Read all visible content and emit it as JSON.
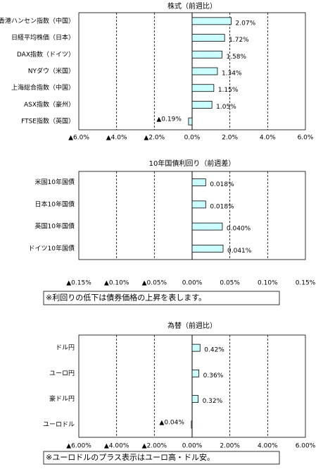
{
  "chart_data": [
    {
      "type": "bar",
      "title": "株式（前週比）",
      "categories": [
        "香港ハンセン指数（中国）",
        "日経平均株価（日本）",
        "DAX指数（ドイツ）",
        "NYダウ（米国）",
        "上海総合指数（中国）",
        "ASX指数（豪州）",
        "FTSE指数（英国）"
      ],
      "values": [
        2.07,
        1.72,
        1.58,
        1.34,
        1.15,
        1.05,
        -0.19
      ],
      "value_labels": [
        "2.07%",
        "1.72%",
        "1.58%",
        "1.34%",
        "1.15%",
        "1.05%",
        "▲0.19%"
      ],
      "color": "#ccffff",
      "negative_label_color": "#ff0000",
      "xlim": [
        -6,
        6
      ],
      "xticks": [
        {
          "value": -6,
          "label": "▲6.0%"
        },
        {
          "value": -4,
          "label": "▲4.0%"
        },
        {
          "value": -2,
          "label": "▲2.0%"
        },
        {
          "value": 0,
          "label": "0.0%"
        },
        {
          "value": 2,
          "label": "2.0%"
        },
        {
          "value": 4,
          "label": "4.0%"
        },
        {
          "value": 6,
          "label": "6.0%"
        }
      ],
      "grid": true
    },
    {
      "type": "bar",
      "title": "10年国債利回り（前週差）",
      "categories": [
        "米国10年国債",
        "日本10年国債",
        "英国10年国債",
        "ドイツ10年国債"
      ],
      "values": [
        0.018,
        0.018,
        0.04,
        0.041
      ],
      "value_labels": [
        "0.018%",
        "0.018%",
        "0.040%",
        "0.041%"
      ],
      "color": "#ccffff",
      "negative_label_color": "#ff0000",
      "xlim": [
        -0.15,
        0.15
      ],
      "xticks": [
        {
          "value": -0.15,
          "label": "▲0.15%"
        },
        {
          "value": -0.1,
          "label": "▲0.10%"
        },
        {
          "value": -0.05,
          "label": "▲0.05%"
        },
        {
          "value": 0,
          "label": "0.00%"
        },
        {
          "value": 0.05,
          "label": "0.05%"
        },
        {
          "value": 0.1,
          "label": "0.10%"
        },
        {
          "value": 0.15,
          "label": "0.15%"
        }
      ],
      "grid": true,
      "note": "※利回りの低下は債券価格の上昇を表します。"
    },
    {
      "type": "bar",
      "title": "為替（前週比）",
      "categories": [
        "ドル円",
        "ユーロ円",
        "豪ドル円",
        "ユーロドル"
      ],
      "values": [
        0.42,
        0.36,
        0.32,
        -0.04
      ],
      "value_labels": [
        "0.42%",
        "0.36%",
        "0.32%",
        "▲0.04%"
      ],
      "color": "#ccffff",
      "negative_label_color": "#ff0000",
      "xlim": [
        -6,
        6
      ],
      "xticks": [
        {
          "value": -6,
          "label": "▲6.00%"
        },
        {
          "value": -4,
          "label": "▲4.00%"
        },
        {
          "value": -2,
          "label": "▲2.00%"
        },
        {
          "value": 0,
          "label": "0.00%"
        },
        {
          "value": 2,
          "label": "2.00%"
        },
        {
          "value": 4,
          "label": "4.00%"
        },
        {
          "value": 6,
          "label": "6.00%"
        }
      ],
      "grid": true,
      "note": "※ユーロドルのプラス表示はユーロ高・ドル安。"
    }
  ]
}
